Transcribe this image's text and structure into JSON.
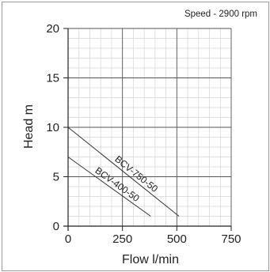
{
  "chart_data": {
    "type": "line",
    "title": "",
    "annotation": "Speed - 2900 rpm",
    "xlabel": "Flow l/min",
    "ylabel": "Head m",
    "xlim": [
      0,
      750
    ],
    "ylim": [
      0,
      20
    ],
    "x_ticks": [
      0,
      250,
      500,
      750
    ],
    "y_ticks": [
      0,
      5,
      10,
      15,
      20
    ],
    "x_tick_labels": [
      "0",
      "250",
      "500",
      "750"
    ],
    "y_tick_labels": [
      "0",
      "5",
      "10",
      "15",
      "20"
    ],
    "grid": true,
    "minor_grid_step": {
      "x": 50,
      "y": 1
    },
    "series": [
      {
        "name": "BCV-750-50",
        "x": [
          0,
          510
        ],
        "y": [
          10,
          1
        ]
      },
      {
        "name": "BCV-400-50",
        "x": [
          0,
          380
        ],
        "y": [
          7,
          1
        ]
      }
    ],
    "colors": {
      "curve": "#333333",
      "major_grid": "#555555",
      "minor_grid": "#d4d4d4",
      "axis": "#222222"
    }
  }
}
